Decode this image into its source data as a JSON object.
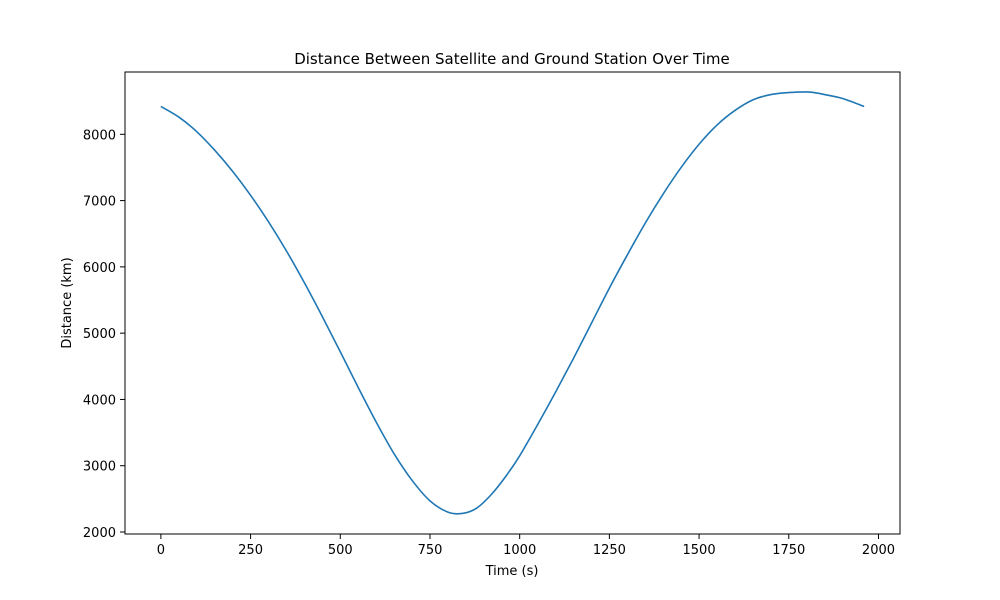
{
  "chart_data": {
    "type": "line",
    "title": "Distance Between Satellite and Ground Station Over Time",
    "xlabel": "Time (s)",
    "ylabel": "Distance (km)",
    "xlim": [
      -100,
      2060
    ],
    "ylim": [
      1970,
      8940
    ],
    "xticks": [
      0,
      250,
      500,
      750,
      1000,
      1250,
      1500,
      1750,
      2000
    ],
    "yticks": [
      2000,
      3000,
      4000,
      5000,
      6000,
      7000,
      8000
    ],
    "grid": false,
    "series": [
      {
        "color": "#1f77b4",
        "x": [
          0,
          50,
          100,
          150,
          200,
          250,
          300,
          350,
          400,
          450,
          500,
          550,
          600,
          650,
          700,
          750,
          800,
          840,
          880,
          920,
          960,
          1000,
          1050,
          1100,
          1150,
          1200,
          1250,
          1300,
          1350,
          1400,
          1450,
          1500,
          1550,
          1600,
          1650,
          1700,
          1750,
          1800,
          1820,
          1850,
          1900,
          1960
        ],
        "y": [
          8420,
          8260,
          8040,
          7760,
          7440,
          7080,
          6680,
          6240,
          5760,
          5250,
          4720,
          4180,
          3660,
          3180,
          2780,
          2470,
          2300,
          2280,
          2360,
          2560,
          2830,
          3150,
          3620,
          4110,
          4620,
          5150,
          5680,
          6180,
          6660,
          7100,
          7500,
          7850,
          8140,
          8360,
          8520,
          8600,
          8630,
          8640,
          8630,
          8600,
          8540,
          8420
        ]
      }
    ]
  }
}
